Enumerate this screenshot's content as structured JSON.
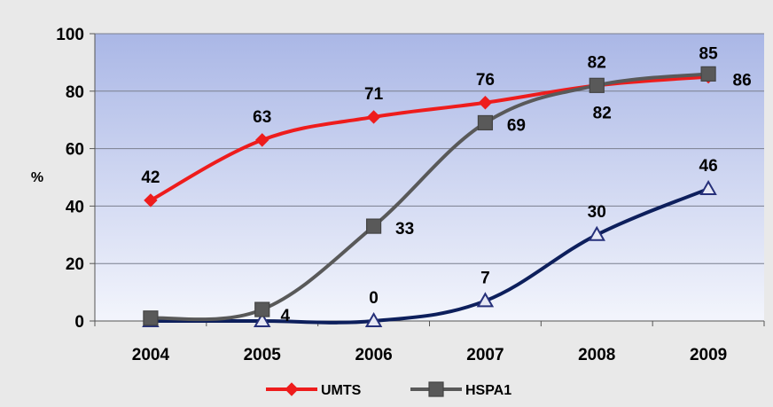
{
  "chart_data": {
    "type": "line",
    "title": "",
    "xlabel": "",
    "ylabel": "%",
    "ylim": [
      0,
      100
    ],
    "yticks": [
      0,
      20,
      40,
      60,
      80,
      100
    ],
    "categories": [
      "2004",
      "2005",
      "2006",
      "2007",
      "2008",
      "2009"
    ],
    "grid": true,
    "legend_position": "bottom",
    "series": [
      {
        "name": "UMTS",
        "values": [
          42,
          63,
          71,
          76,
          82,
          85
        ],
        "color": "#ee1c1c",
        "marker": "diamond",
        "labels": [
          "42",
          "63",
          "71",
          "76",
          "82",
          "85"
        ]
      },
      {
        "name": "HSPA1",
        "values": [
          1,
          4,
          33,
          69,
          82,
          86
        ],
        "color": "#595959",
        "marker": "square",
        "labels": [
          "",
          "4",
          "33",
          "69",
          "82",
          "86"
        ]
      },
      {
        "name": "",
        "values": [
          0,
          0,
          0,
          7,
          30,
          46
        ],
        "color": "#0d1f5c",
        "marker": "triangle",
        "labels": [
          "",
          "",
          "0",
          "7",
          "30",
          "46"
        ]
      }
    ]
  }
}
